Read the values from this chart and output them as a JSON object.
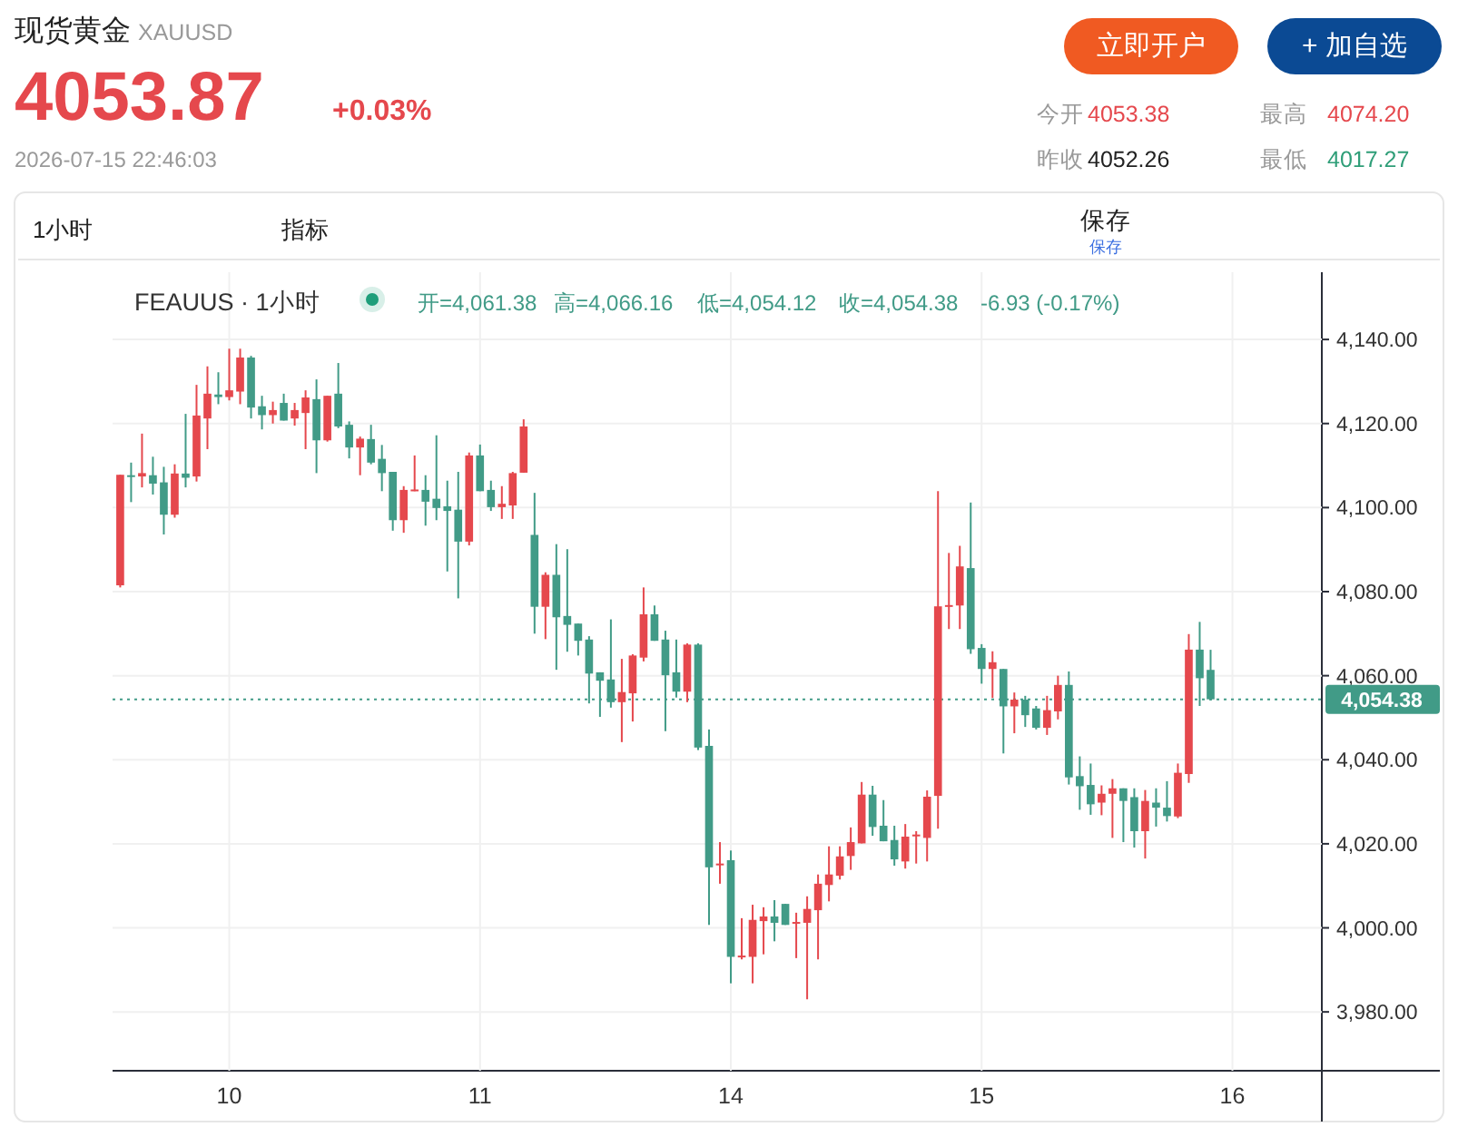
{
  "chart_data": {
    "type": "candlestick",
    "title": "现货黄金",
    "subtitle": "XAUUSD",
    "annotations": [
      "4053.87",
      "+0.03%",
      "2026-07-15 22:46:03",
      "立即开户",
      "+ 加自选",
      "今开",
      "4053.38",
      "最高",
      "4074.20",
      "昨收",
      "4052.26",
      "最低",
      "4017.27",
      "1小时",
      "指标",
      "保存",
      "保存",
      "FEAUUS · 1小时",
      "开=4,061.38",
      "高=4,066.16",
      "低=4,054.12",
      "收=4,054.38",
      "-6.93 (-0.17%)"
    ],
    "categories": [
      null,
      null,
      null,
      null,
      null,
      null,
      null,
      null,
      null,
      null,
      "10",
      null,
      null,
      null,
      null,
      null,
      null,
      null,
      null,
      null,
      null,
      null,
      null,
      null,
      null,
      null,
      null,
      null,
      null,
      null,
      null,
      null,
      null,
      "11",
      null,
      null,
      null,
      null,
      null,
      null,
      null,
      null,
      null,
      null,
      null,
      null,
      null,
      null,
      null,
      null,
      null,
      null,
      null,
      null,
      null,
      null,
      "14",
      null,
      null,
      null,
      null,
      null,
      null,
      null,
      null,
      null,
      null,
      null,
      null,
      null,
      null,
      null,
      null,
      null,
      null,
      null,
      null,
      null,
      null,
      "15",
      null,
      null,
      null,
      null,
      null,
      null,
      null,
      null,
      null,
      null,
      null,
      null,
      null,
      null,
      null,
      null,
      null,
      null,
      null,
      null,
      null,
      null,
      "16"
    ],
    "ohlc": [
      [
        4081.5,
        4107.8,
        4081.0,
        4107.8
      ],
      [
        4107.7,
        4110.7,
        4101.3,
        4107.5
      ],
      [
        4107.4,
        4117.6,
        4104.8,
        4108.2
      ],
      [
        4107.7,
        4112.1,
        4103.1,
        4105.7
      ],
      [
        4106.0,
        4109.7,
        4093.6,
        4098.3
      ],
      [
        4098.3,
        4110.3,
        4097.6,
        4108.1
      ],
      [
        4108.1,
        4122.3,
        4104.8,
        4107.1
      ],
      [
        4107.4,
        4129.2,
        4106.2,
        4121.9
      ],
      [
        4121.2,
        4133.6,
        4113.9,
        4127.1
      ],
      [
        4126.9,
        4132.2,
        4124.6,
        4126.3
      ],
      [
        4126.3,
        4137.8,
        4125.5,
        4127.9
      ],
      [
        4127.6,
        4137.8,
        4124.6,
        4135.7
      ],
      [
        4135.7,
        4136.1,
        4121.2,
        4123.8
      ],
      [
        4124.1,
        4126.6,
        4118.6,
        4122.0
      ],
      [
        4122.0,
        4125.2,
        4120.0,
        4123.2
      ],
      [
        4124.9,
        4127.1,
        4120.7,
        4120.7
      ],
      [
        4121.2,
        4124.9,
        4119.5,
        4123.2
      ],
      [
        4122.5,
        4127.9,
        4113.9,
        4126.2
      ],
      [
        4125.8,
        4130.5,
        4108.2,
        4116.0
      ],
      [
        4116.0,
        4126.6,
        4115.7,
        4126.6
      ],
      [
        4127.1,
        4134.4,
        4118.9,
        4119.3
      ],
      [
        4119.7,
        4120.5,
        4111.7,
        4114.3
      ],
      [
        4114.3,
        4116.9,
        4107.7,
        4116.4
      ],
      [
        4116.3,
        4119.7,
        4110.3,
        4110.7
      ],
      [
        4111.6,
        4114.9,
        4103.9,
        4108.2
      ],
      [
        4108.5,
        4108.5,
        4094.5,
        4097.0
      ],
      [
        4097.0,
        4105.1,
        4094.0,
        4104.2
      ],
      [
        4104.2,
        4112.4,
        4103.9,
        4104.3
      ],
      [
        4104.2,
        4107.7,
        4095.7,
        4101.4
      ],
      [
        4102.1,
        4117.2,
        4097.0,
        4099.9
      ],
      [
        4100.3,
        4106.4,
        4084.8,
        4099.2
      ],
      [
        4099.5,
        4108.5,
        4078.4,
        4091.9
      ],
      [
        4091.9,
        4113.1,
        4091.0,
        4112.4
      ],
      [
        4112.4,
        4115.0,
        4103.9,
        4103.9
      ],
      [
        4104.2,
        4106.4,
        4099.2,
        4100.1
      ],
      [
        4100.1,
        4105.1,
        4097.3,
        4100.9
      ],
      [
        4100.5,
        4108.5,
        4097.3,
        4108.2
      ],
      [
        4108.3,
        4121.0,
        4108.3,
        4119.3
      ],
      [
        4093.5,
        4103.5,
        4070.0,
        4076.4
      ],
      [
        4076.4,
        4084.6,
        4068.7,
        4084.0
      ],
      [
        4084.0,
        4091.3,
        4061.4,
        4073.9
      ],
      [
        4074.2,
        4090.1,
        4065.7,
        4072.1
      ],
      [
        4072.4,
        4072.4,
        4064.8,
        4068.3
      ],
      [
        4068.6,
        4069.4,
        4053.4,
        4060.5
      ],
      [
        4060.8,
        4060.8,
        4050.2,
        4058.8
      ],
      [
        4059.1,
        4073.4,
        4052.4,
        4053.7
      ],
      [
        4053.7,
        4064.0,
        4044.2,
        4056.1
      ],
      [
        4055.8,
        4065.1,
        4049.1,
        4064.8
      ],
      [
        4064.3,
        4081.0,
        4063.4,
        4074.6
      ],
      [
        4074.6,
        4076.7,
        4068.3,
        4068.3
      ],
      [
        4068.6,
        4070.7,
        4046.8,
        4060.1
      ],
      [
        4060.8,
        4068.6,
        4054.8,
        4056.2
      ],
      [
        4056.2,
        4067.7,
        4053.7,
        4067.4
      ],
      [
        4067.4,
        4067.7,
        4042.3,
        4042.9
      ],
      [
        4043.3,
        4047.2,
        4000.7,
        4014.4
      ],
      [
        4015.0,
        4020.4,
        4010.5,
        4015.3
      ],
      [
        4016.1,
        4018.4,
        3986.8,
        3993.1
      ],
      [
        3993.1,
        4002.3,
        3992.5,
        3993.4
      ],
      [
        3993.1,
        4005.5,
        3986.8,
        4001.9
      ],
      [
        4001.6,
        4004.9,
        3993.7,
        4002.7
      ],
      [
        4002.7,
        4006.6,
        3996.8,
        4001.2
      ],
      [
        4005.7,
        4005.7,
        4000.7,
        4000.7
      ],
      [
        4001.0,
        4003.6,
        3992.8,
        4001.4
      ],
      [
        4001.2,
        4007.5,
        3983.0,
        4004.5
      ],
      [
        4004.2,
        4012.7,
        3992.5,
        4010.5
      ],
      [
        4010.2,
        4019.4,
        4006.3,
        4012.7
      ],
      [
        4012.4,
        4019.4,
        4011.5,
        4017.0
      ],
      [
        4017.1,
        4023.9,
        4013.8,
        4020.4
      ],
      [
        4020.1,
        4034.7,
        4020.1,
        4031.7
      ],
      [
        4031.7,
        4033.8,
        4021.9,
        4024.0
      ],
      [
        4024.3,
        4030.4,
        4020.6,
        4020.6
      ],
      [
        4020.9,
        4024.3,
        4014.8,
        4016.3
      ],
      [
        4015.8,
        4024.7,
        4014.1,
        4021.7
      ],
      [
        4022.0,
        4023.0,
        4015.3,
        4022.2
      ],
      [
        4021.4,
        4032.7,
        4015.8,
        4031.2
      ],
      [
        4031.4,
        4103.9,
        4023.6,
        4076.5
      ],
      [
        4076.7,
        4089.2,
        4071.1,
        4076.8
      ],
      [
        4076.7,
        4090.9,
        4071.1,
        4086.0
      ],
      [
        4085.6,
        4101.2,
        4065.2,
        4066.3
      ],
      [
        4066.6,
        4067.5,
        4058.1,
        4061.6
      ],
      [
        4061.6,
        4065.8,
        4054.7,
        4063.2
      ],
      [
        4061.6,
        4061.6,
        4041.5,
        4052.7
      ],
      [
        4052.7,
        4056.0,
        4046.3,
        4054.3
      ],
      [
        4054.3,
        4055.2,
        4047.8,
        4050.6
      ],
      [
        4052.2,
        4052.8,
        4047.2,
        4047.6
      ],
      [
        4047.6,
        4055.2,
        4045.9,
        4051.8
      ],
      [
        4051.5,
        4060.0,
        4049.6,
        4057.8
      ],
      [
        4057.8,
        4061.0,
        4034.1,
        4035.8
      ],
      [
        4036.1,
        4040.8,
        4028.1,
        4033.7
      ],
      [
        4034.0,
        4039.1,
        4026.9,
        4029.4
      ],
      [
        4029.8,
        4033.9,
        4026.8,
        4031.9
      ],
      [
        4031.9,
        4035.4,
        4021.4,
        4033.2
      ],
      [
        4033.2,
        4033.2,
        4020.4,
        4030.2
      ],
      [
        4031.1,
        4033.2,
        4019.1,
        4023.0
      ],
      [
        4023.0,
        4032.8,
        4016.5,
        4030.2
      ],
      [
        4029.8,
        4033.2,
        4024.1,
        4028.6
      ],
      [
        4028.6,
        4034.9,
        4025.3,
        4026.6
      ],
      [
        4026.5,
        4039.1,
        4026.1,
        4036.9
      ],
      [
        4036.6,
        4069.9,
        4034.5,
        4066.2
      ],
      [
        4066.2,
        4072.8,
        4052.8,
        4059.4
      ],
      [
        4061.38,
        4066.16,
        4054.12,
        4054.38
      ],
      null,
      null
    ],
    "colors": [
      "#e5484d",
      "#419b87",
      "#e5484d",
      "#419b87",
      "#419b87",
      "#e5484d",
      "#419b87",
      "#e5484d",
      "#e5484d",
      "#419b87",
      "#e5484d",
      "#e5484d",
      "#419b87",
      "#419b87",
      "#e5484d",
      "#419b87",
      "#e5484d",
      "#e5484d",
      "#419b87",
      "#e5484d",
      "#419b87",
      "#419b87",
      "#e5484d",
      "#419b87",
      "#419b87",
      "#419b87",
      "#e5484d",
      "#e5484d",
      "#419b87",
      "#419b87",
      "#419b87",
      "#419b87",
      "#e5484d",
      "#419b87",
      "#419b87",
      "#e5484d",
      "#e5484d",
      "#e5484d",
      "#419b87",
      "#e5484d",
      "#419b87",
      "#419b87",
      "#419b87",
      "#419b87",
      "#419b87",
      "#419b87",
      "#e5484d",
      "#e5484d",
      "#e5484d",
      "#419b87",
      "#419b87",
      "#419b87",
      "#e5484d",
      "#419b87",
      "#419b87",
      "#e5484d",
      "#419b87",
      "#e5484d",
      "#e5484d",
      "#e5484d",
      "#419b87",
      "#419b87",
      "#e5484d",
      "#e5484d",
      "#e5484d",
      "#e5484d",
      "#e5484d",
      "#e5484d",
      "#e5484d",
      "#419b87",
      "#419b87",
      "#419b87",
      "#e5484d",
      "#e5484d",
      "#e5484d",
      "#e5484d",
      "#e5484d",
      "#e5484d",
      "#419b87",
      "#419b87",
      "#e5484d",
      "#419b87",
      "#e5484d",
      "#419b87",
      "#419b87",
      "#e5484d",
      "#e5484d",
      "#419b87",
      "#419b87",
      "#419b87",
      "#e5484d",
      "#e5484d",
      "#419b87",
      "#419b87",
      "#e5484d",
      "#419b87",
      "#419b87",
      "#e5484d",
      "#e5484d",
      "#419b87",
      "#419b87",
      null,
      null
    ],
    "ylim": [
      3966,
      4156
    ],
    "yticks": [
      {
        "value": 3980,
        "label": "3,980.00"
      },
      {
        "value": 4000,
        "label": "4,000.00"
      },
      {
        "value": 4020,
        "label": "4,020.00"
      },
      {
        "value": 4040,
        "label": "4,040.00"
      },
      {
        "value": 4060,
        "label": "4,060.00"
      },
      {
        "value": 4080,
        "label": "4,080.00"
      },
      {
        "value": 4100,
        "label": "4,100.00"
      },
      {
        "value": 4120,
        "label": "4,120.00"
      },
      {
        "value": 4140,
        "label": "4,140.00"
      }
    ],
    "ref_lines": [
      {
        "axis": "y",
        "value": 4054.38,
        "label": "4,054.38",
        "color": "#419b87",
        "line_style": "dotted"
      }
    ],
    "grid": true
  }
}
